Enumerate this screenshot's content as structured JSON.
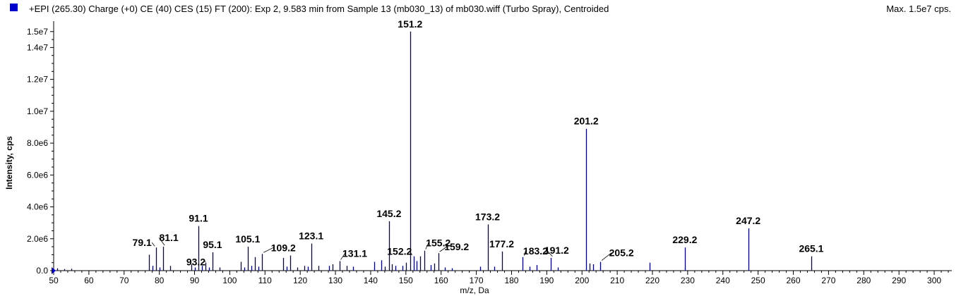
{
  "header": {
    "title": "+EPI (265.30) Charge (+0) CE (40) CES (15) FT (200): Exp 2, 9.583 min from Sample 13 (mb030_13) of mb030.wiff (Turbo Spray), Centroided",
    "max_label": "Max. 1.5e7 cps."
  },
  "colors": {
    "spectrum": "#00008b",
    "legend": "#0000cc",
    "axis": "#000000"
  },
  "chart_data": {
    "type": "bar",
    "xlabel": "m/z, Da",
    "ylabel": "Intensity, cps",
    "xlim": [
      50,
      305
    ],
    "ylim": [
      0,
      15300000
    ],
    "x_ticks": [
      50,
      60,
      70,
      80,
      90,
      100,
      110,
      120,
      130,
      140,
      150,
      160,
      170,
      180,
      190,
      200,
      210,
      220,
      230,
      240,
      250,
      260,
      270,
      280,
      290,
      300
    ],
    "y_ticks": [
      {
        "value": 0,
        "label": "0.0"
      },
      {
        "value": 2000000,
        "label": "2.0e6"
      },
      {
        "value": 4000000,
        "label": "4.0e6"
      },
      {
        "value": 6000000,
        "label": "6.0e6"
      },
      {
        "value": 8000000,
        "label": "8.0e6"
      },
      {
        "value": 10000000,
        "label": "1.0e7"
      },
      {
        "value": 12000000,
        "label": "1.2e7"
      },
      {
        "value": 14000000,
        "label": "1.4e7"
      },
      {
        "value": 15000000,
        "label": "1.5e7"
      }
    ],
    "peaks": [
      [
        51.1,
        150000
      ],
      [
        53.1,
        100000
      ],
      [
        55.1,
        120000
      ],
      [
        77.1,
        1000000
      ],
      [
        78.1,
        300000
      ],
      [
        79.1,
        1450000
      ],
      [
        80.1,
        200000
      ],
      [
        81.1,
        1500000
      ],
      [
        83.1,
        300000
      ],
      [
        89.1,
        400000
      ],
      [
        90.1,
        200000
      ],
      [
        91.1,
        2800000
      ],
      [
        92.1,
        300000
      ],
      [
        93.2,
        500000
      ],
      [
        94.1,
        200000
      ],
      [
        95.1,
        1150000
      ],
      [
        97.1,
        200000
      ],
      [
        103.1,
        550000
      ],
      [
        104.1,
        200000
      ],
      [
        105.1,
        1500000
      ],
      [
        106.1,
        300000
      ],
      [
        107.1,
        850000
      ],
      [
        108.1,
        250000
      ],
      [
        109.2,
        1050000
      ],
      [
        115.1,
        800000
      ],
      [
        116.1,
        250000
      ],
      [
        117.1,
        950000
      ],
      [
        119.1,
        200000
      ],
      [
        121.1,
        300000
      ],
      [
        122.1,
        250000
      ],
      [
        123.1,
        1700000
      ],
      [
        125.1,
        300000
      ],
      [
        128.1,
        300000
      ],
      [
        129.1,
        400000
      ],
      [
        131.1,
        600000
      ],
      [
        133.1,
        300000
      ],
      [
        135.1,
        250000
      ],
      [
        141.1,
        550000
      ],
      [
        143.1,
        650000
      ],
      [
        144.1,
        250000
      ],
      [
        145.2,
        3100000
      ],
      [
        146.1,
        400000
      ],
      [
        147.1,
        300000
      ],
      [
        149.1,
        300000
      ],
      [
        150.1,
        500000
      ],
      [
        151.2,
        15000000
      ],
      [
        152.2,
        900000
      ],
      [
        153.1,
        600000
      ],
      [
        154.1,
        900000
      ],
      [
        155.2,
        1250000
      ],
      [
        157.1,
        350000
      ],
      [
        158.1,
        450000
      ],
      [
        159.2,
        1100000
      ],
      [
        161.1,
        200000
      ],
      [
        163.1,
        150000
      ],
      [
        171.1,
        250000
      ],
      [
        173.2,
        2900000
      ],
      [
        175.1,
        250000
      ],
      [
        177.2,
        1200000
      ],
      [
        183.2,
        850000
      ],
      [
        185.1,
        250000
      ],
      [
        187.1,
        350000
      ],
      [
        191.2,
        800000
      ],
      [
        193.1,
        200000
      ],
      [
        201.2,
        8900000
      ],
      [
        202.1,
        450000
      ],
      [
        203.1,
        400000
      ],
      [
        205.2,
        550000
      ],
      [
        219.1,
        500000
      ],
      [
        229.2,
        1450000
      ],
      [
        247.2,
        2650000
      ],
      [
        265.1,
        900000
      ]
    ],
    "annotations": [
      {
        "x": 79.1,
        "text": "79.1"
      },
      {
        "x": 81.1,
        "text": "81.1"
      },
      {
        "x": 91.1,
        "text": "91.1"
      },
      {
        "x": 93.2,
        "text": "93.2"
      },
      {
        "x": 95.1,
        "text": "95.1"
      },
      {
        "x": 105.1,
        "text": "105.1"
      },
      {
        "x": 109.2,
        "text": "109.2"
      },
      {
        "x": 123.1,
        "text": "123.1"
      },
      {
        "x": 131.1,
        "text": "131.1"
      },
      {
        "x": 145.2,
        "text": "145.2"
      },
      {
        "x": 151.2,
        "text": "151.2"
      },
      {
        "x": 152.2,
        "text": "152.2"
      },
      {
        "x": 155.2,
        "text": "155.2"
      },
      {
        "x": 159.2,
        "text": "159.2"
      },
      {
        "x": 173.2,
        "text": "173.2"
      },
      {
        "x": 177.2,
        "text": "177.2"
      },
      {
        "x": 183.2,
        "text": "183.2"
      },
      {
        "x": 191.2,
        "text": "191.2"
      },
      {
        "x": 201.2,
        "text": "201.2"
      },
      {
        "x": 205.2,
        "text": "205.2"
      },
      {
        "x": 229.2,
        "text": "229.2"
      },
      {
        "x": 247.2,
        "text": "247.2"
      },
      {
        "x": 265.1,
        "text": "265.1"
      }
    ]
  }
}
